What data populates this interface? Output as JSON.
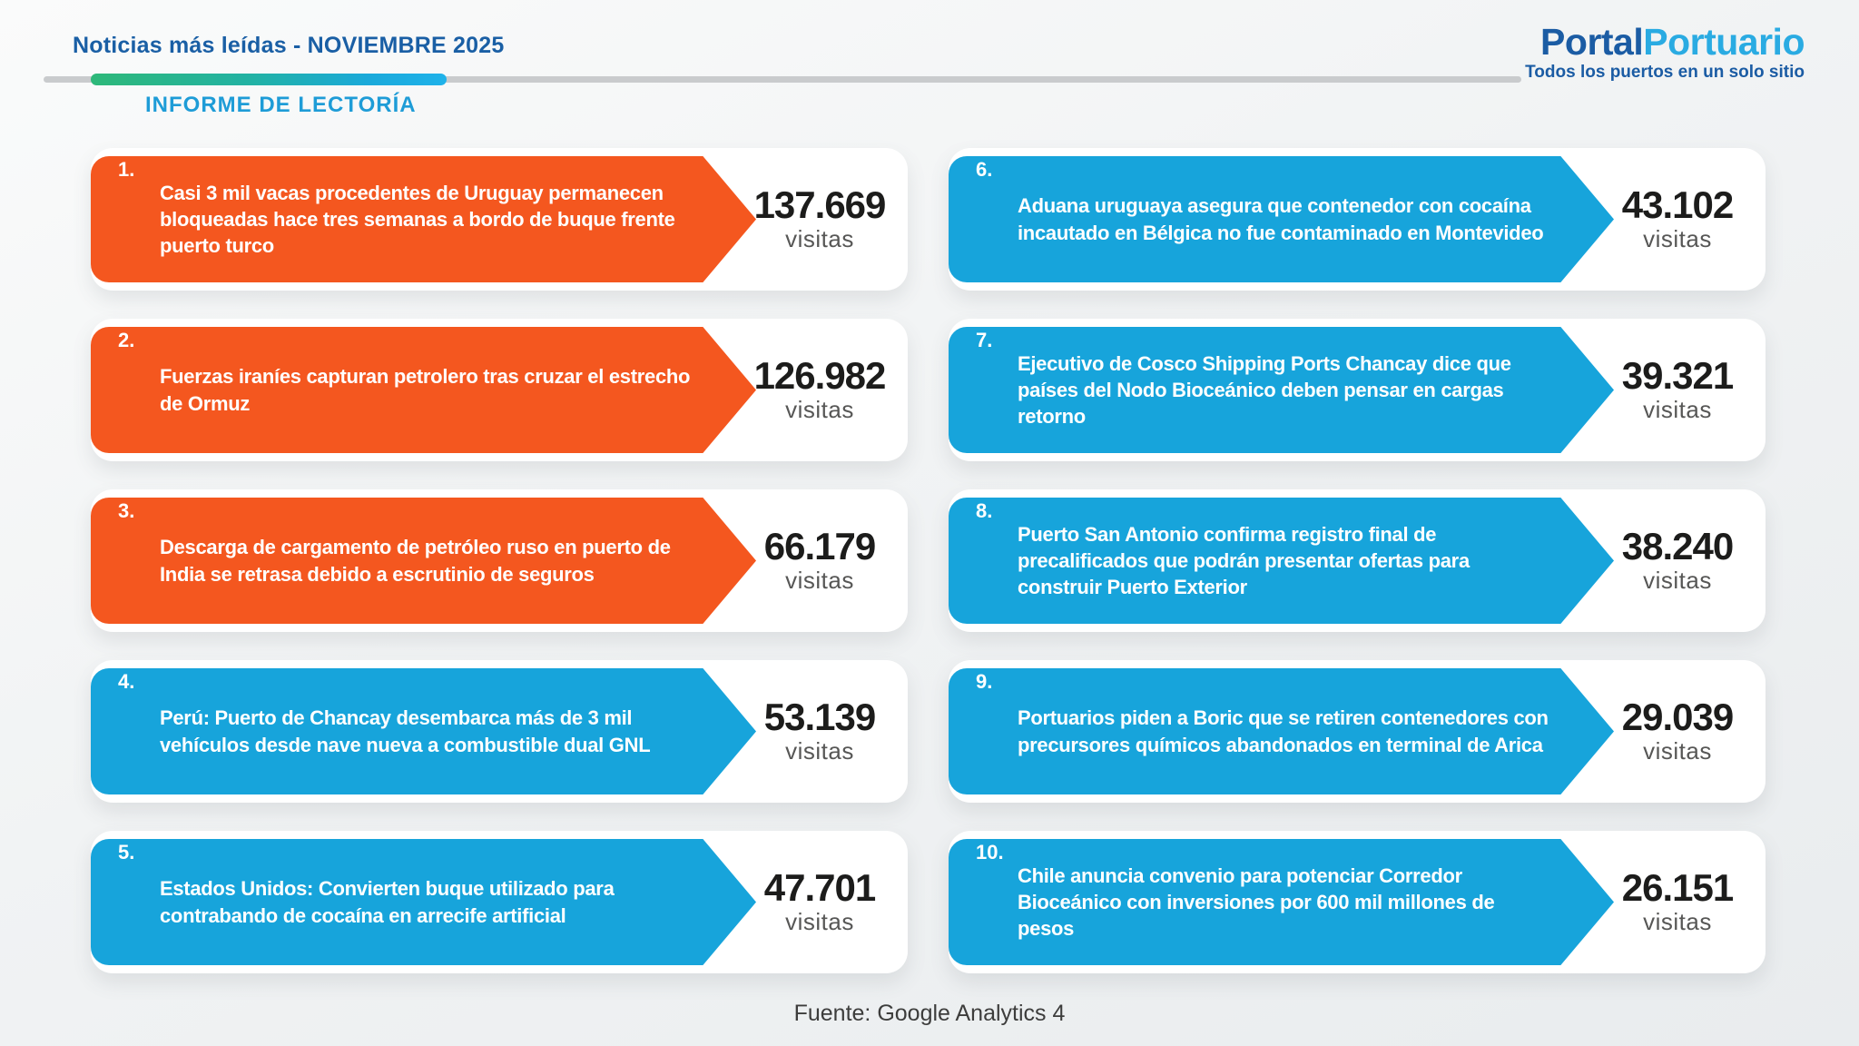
{
  "header": {
    "title": "Noticias más leídas - NOVIEMBRE 2025",
    "subtitle": "INFORME DE LECTORÍA",
    "logo": {
      "part1": "Portal",
      "part2": "Portuario",
      "tagline": "Todos los puertos en un solo sitio"
    }
  },
  "labels": {
    "visits": "visitas"
  },
  "palette": {
    "orange": "#F4571F",
    "blue": "#17A4DB",
    "title_blue": "#1A5FA5",
    "subtitle_blue": "#1E9CD7",
    "count_black": "#1C1C1B",
    "visits_gray": "#575756",
    "gradient_green": "#2EB879",
    "gradient_blue": "#1FB2EA"
  },
  "items": [
    {
      "rank": "1.",
      "color": "orange",
      "text": "Casi 3 mil vacas procedentes de Uruguay permanecen bloqueadas hace tres semanas a bordo de buque frente puerto turco",
      "visits": "137.669"
    },
    {
      "rank": "2.",
      "color": "orange",
      "text": "Fuerzas iraníes capturan petrolero tras cruzar el estrecho de Ormuz",
      "visits": "126.982"
    },
    {
      "rank": "3.",
      "color": "orange",
      "text": "Descarga de cargamento de petróleo ruso en puerto de India se retrasa debido a escrutinio de seguros",
      "visits": "66.179"
    },
    {
      "rank": "4.",
      "color": "blue",
      "text": "Perú: Puerto de Chancay desembarca más de 3 mil vehículos desde nave nueva a combustible dual GNL",
      "visits": "53.139"
    },
    {
      "rank": "5.",
      "color": "blue",
      "text": "Estados Unidos: Convierten buque utilizado para contrabando de cocaína en arrecife artificial",
      "visits": "47.701"
    },
    {
      "rank": "6.",
      "color": "blue",
      "text": "Aduana uruguaya asegura que contenedor con cocaína incautado en Bélgica no fue contaminado en Montevideo",
      "visits": "43.102"
    },
    {
      "rank": "7.",
      "color": "blue",
      "text": "Ejecutivo de Cosco Shipping Ports Chancay dice que países del Nodo Bioceánico deben pensar en cargas retorno",
      "visits": "39.321"
    },
    {
      "rank": "8.",
      "color": "blue",
      "text": "Puerto San Antonio confirma registro final de precalificados que podrán presentar ofertas para construir Puerto Exterior",
      "visits": "38.240"
    },
    {
      "rank": "9.",
      "color": "blue",
      "text": "Portuarios piden a Boric que se retiren contenedores con precursores químicos abandonados en terminal de Arica",
      "visits": "29.039"
    },
    {
      "rank": "10.",
      "color": "blue",
      "text": "Chile anuncia convenio para potenciar Corredor Bioceánico con inversiones por 600 mil millones de pesos",
      "visits": "26.151"
    }
  ],
  "footer": {
    "source": "Fuente: Google Analytics 4"
  },
  "chart_data": {
    "type": "table",
    "title": "Noticias más leídas - NOVIEMBRE 2025",
    "subtitle": "INFORME DE LECTORÍA",
    "value_label": "visitas",
    "categories": [
      "Casi 3 mil vacas procedentes de Uruguay permanecen bloqueadas hace tres semanas a bordo de buque frente puerto turco",
      "Fuerzas iraníes capturan petrolero tras cruzar el estrecho de Ormuz",
      "Descarga de cargamento de petróleo ruso en puerto de India se retrasa debido a escrutinio de seguros",
      "Perú: Puerto de Chancay desembarca más de 3 mil vehículos desde nave nueva a combustible dual GNL",
      "Estados Unidos: Convierten buque utilizado para contrabando de cocaína en arrecife artificial",
      "Aduana uruguaya asegura que contenedor con cocaína incautado en Bélgica no fue contaminado en Montevideo",
      "Ejecutivo de Cosco Shipping Ports Chancay dice que países del Nodo Bioceánico deben pensar en cargas retorno",
      "Puerto San Antonio confirma registro final de precalificados que podrán presentar ofertas para construir Puerto Exterior",
      "Portuarios piden a Boric que se retiren contenedores con precursores químicos abandonados en terminal de Arica",
      "Chile anuncia convenio para potenciar Corredor Bioceánico con inversiones por 600 mil millones de pesos"
    ],
    "values": [
      137669,
      126982,
      66179,
      53139,
      47701,
      43102,
      39321,
      38240,
      29039,
      26151
    ],
    "source": "Fuente: Google Analytics 4"
  }
}
